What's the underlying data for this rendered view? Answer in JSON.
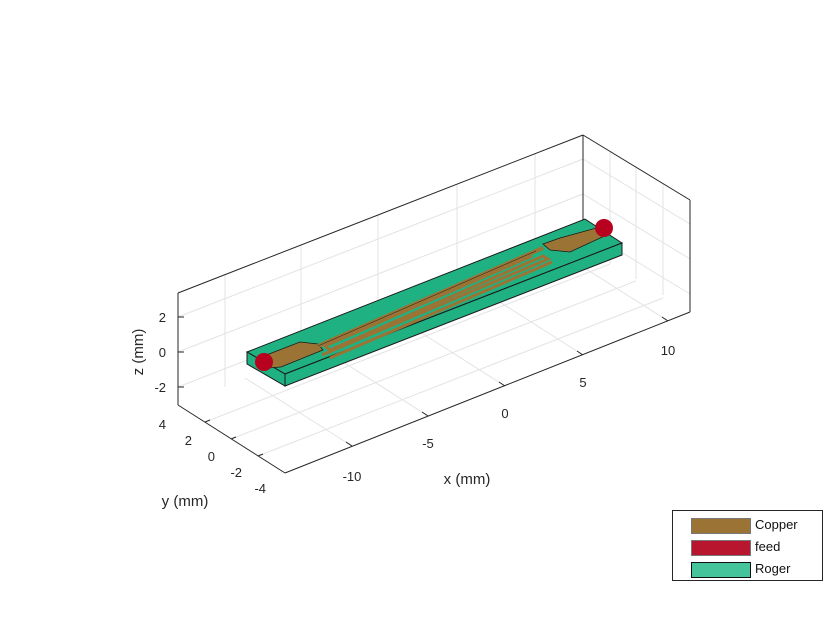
{
  "chart_data": {
    "type": "3d-geometry",
    "xlabel": "x (mm)",
    "ylabel": "y (mm)",
    "zlabel": "z (mm)",
    "x_ticks": [
      "-10",
      "-5",
      "0",
      "5",
      "10"
    ],
    "y_ticks": [
      "4",
      "2",
      "0",
      "-2",
      "-4"
    ],
    "z_ticks": [
      "2",
      "0",
      "-2"
    ],
    "grid": true,
    "legend_placement": "bottom-right",
    "legend": [
      {
        "name": "Copper",
        "color": "#9b7435"
      },
      {
        "name": "feed",
        "color": "#b8162f"
      },
      {
        "name": "Roger",
        "color": "#45c39a"
      }
    ],
    "substrate_color": "#20b182"
  }
}
